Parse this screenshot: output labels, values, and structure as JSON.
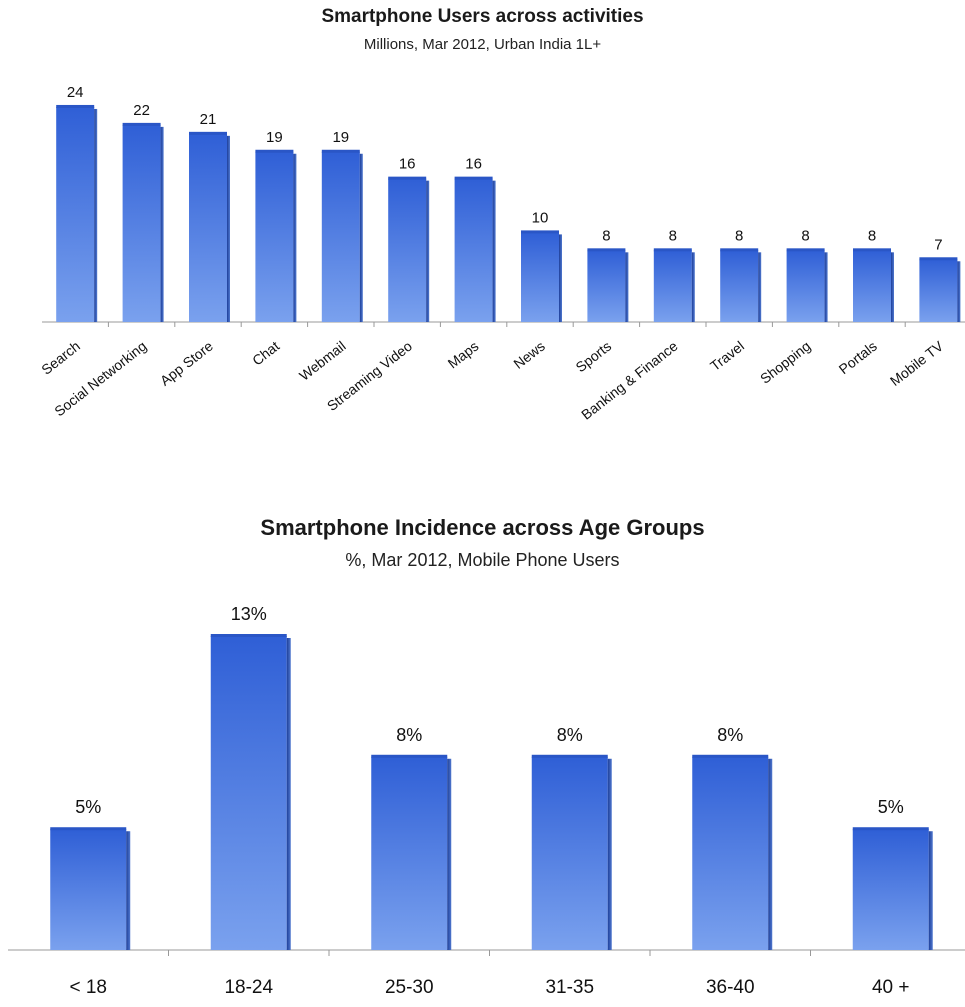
{
  "chart_data": [
    {
      "type": "bar",
      "title": "Smartphone Users across activities",
      "subtitle": "Millions, Mar 2012, Urban India 1L+",
      "categories": [
        "Search",
        "Social Networking",
        "App Store",
        "Chat",
        "Webmail",
        "Streaming Video",
        "Maps",
        "News",
        "Sports",
        "Banking & Finance",
        "Travel",
        "Shopping",
        "Portals",
        "Mobile TV"
      ],
      "values": [
        24,
        22,
        21,
        19,
        19,
        16,
        16,
        10,
        8,
        8,
        8,
        8,
        8,
        7
      ],
      "data_labels": [
        "24",
        "22",
        "21",
        "19",
        "19",
        "16",
        "16",
        "10",
        "8",
        "8",
        "8",
        "8",
        "8",
        "7"
      ],
      "ylim": [
        0,
        25
      ],
      "grid": false,
      "legend": "none",
      "bar_color_top": "#2f5fd6",
      "bar_color_bottom": "#7aa1ee"
    },
    {
      "type": "bar",
      "title": "Smartphone Incidence across Age Groups",
      "subtitle": "%, Mar 2012, Mobile Phone Users",
      "categories": [
        "< 18",
        "18-24",
        "25-30",
        "31-35",
        "36-40",
        "40 +"
      ],
      "values": [
        5,
        13,
        8,
        8,
        8,
        5
      ],
      "data_labels": [
        "5%",
        "13%",
        "8%",
        "8%",
        "8%",
        "5%"
      ],
      "ylim": [
        0,
        14
      ],
      "grid": false,
      "legend": "none",
      "bar_color_top": "#2f5fd6",
      "bar_color_bottom": "#7aa1ee"
    }
  ]
}
